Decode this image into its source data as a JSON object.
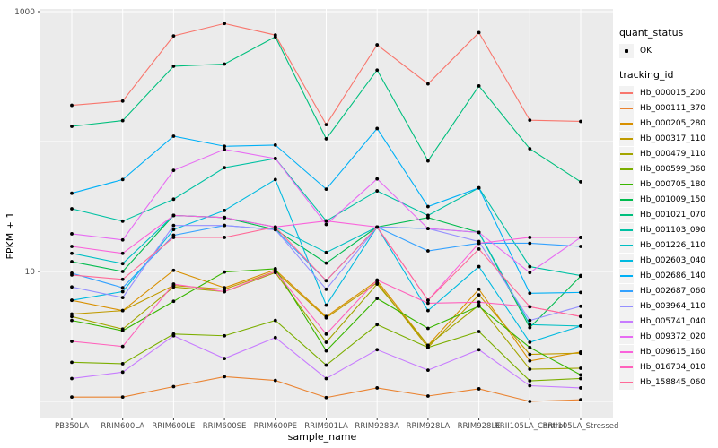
{
  "figure": {
    "panel_bg": "#EBEBEB",
    "grid_color": "#FFFFFF",
    "point_color": "#000000",
    "tick_color": "#333333",
    "tick_label_color": "#4D4D4D",
    "axis_title_color": "#000000",
    "legend_key_bg": "#F2F2F2"
  },
  "legend": {
    "quant_status_title": "quant_status",
    "ok_label": "OK",
    "ok_point_icon": "point-icon",
    "tracking_title": "tracking_id"
  },
  "chart_data": {
    "type": "line",
    "title": "",
    "xlabel": "sample_name",
    "ylabel": "FPKM + 1",
    "y_scale": "log10",
    "ylim": [
      0.75,
      1050
    ],
    "grid": true,
    "legend_position": "right",
    "y_ticks": [
      {
        "label": "1000",
        "value": 1000
      },
      {
        "label": "10",
        "value": 10
      }
    ],
    "y_gridlines": [
      1,
      10,
      100,
      1000
    ],
    "categories": [
      "PB350LA",
      "RRIM600LA",
      "RRIM600LE",
      "RRIM600SE",
      "RRIM600PE",
      "RRIM901LA",
      "RRIM928BA",
      "RRIM928LA",
      "RRIM928LE",
      "RRII105LA_Control",
      "RRII105LA_Stressed"
    ],
    "quant_status_values": [
      "OK"
    ],
    "series": [
      {
        "name": "Hb_000015_200",
        "color": "#F8766D",
        "values": [
          190,
          205,
          650,
          810,
          660,
          135,
          555,
          278,
          690,
          146,
          143
        ]
      },
      {
        "name": "Hb_000111_370",
        "color": "#EA8331",
        "values": [
          1.08,
          1.08,
          1.3,
          1.55,
          1.45,
          1.07,
          1.27,
          1.1,
          1.25,
          1.0,
          1.03
        ]
      },
      {
        "name": "Hb_000205_280",
        "color": "#D89000",
        "values": [
          6.0,
          5.0,
          10.2,
          7.5,
          10.3,
          4.5,
          8.5,
          2.7,
          7.3,
          2.05,
          2.4
        ]
      },
      {
        "name": "Hb_000317_110",
        "color": "#C09B00",
        "values": [
          4.7,
          5.0,
          7.8,
          7.3,
          10.0,
          4.4,
          8.2,
          2.6,
          6.6,
          2.3,
          2.35
        ]
      },
      {
        "name": "Hb_000479_110",
        "color": "#A3A500",
        "values": [
          4.5,
          3.6,
          7.6,
          7.0,
          9.8,
          2.85,
          8.0,
          2.7,
          5.5,
          1.77,
          1.8
        ]
      },
      {
        "name": "Hb_000599_360",
        "color": "#7CAE00",
        "values": [
          2.0,
          1.95,
          3.3,
          3.2,
          4.2,
          1.9,
          3.9,
          2.6,
          3.45,
          1.44,
          1.5
        ]
      },
      {
        "name": "Hb_000705_180",
        "color": "#39B600",
        "values": [
          4.2,
          3.5,
          5.9,
          9.9,
          10.5,
          2.45,
          6.2,
          3.65,
          5.4,
          2.6,
          1.6
        ]
      },
      {
        "name": "Hb_001009_150",
        "color": "#00BB4E",
        "values": [
          11.9,
          10.0,
          27,
          26,
          21,
          11.6,
          22,
          26,
          20,
          3.7,
          9.2
        ]
      },
      {
        "name": "Hb_001021_070",
        "color": "#00BF7D",
        "values": [
          131,
          145,
          380,
          395,
          640,
          105,
          355,
          71,
          268,
          88,
          49
        ]
      },
      {
        "name": "Hb_001103_090",
        "color": "#00C1A3",
        "values": [
          30.4,
          24.4,
          36,
          63,
          74,
          24.5,
          41.7,
          27,
          44,
          10.9,
          9.3
        ]
      },
      {
        "name": "Hb_001226_110",
        "color": "#00BFC4",
        "values": [
          13.8,
          11.5,
          27,
          26,
          22,
          14,
          22,
          21.4,
          20,
          3.9,
          3.8
        ]
      },
      {
        "name": "Hb_002603_040",
        "color": "#00BAE0",
        "values": [
          6.0,
          7.0,
          21,
          29.5,
          51,
          5.5,
          22,
          5.0,
          10.9,
          2.85,
          3.8
        ]
      },
      {
        "name": "Hb_002686_140",
        "color": "#00B0F6",
        "values": [
          40,
          51,
          110,
          92,
          94,
          43,
          126,
          31.6,
          44,
          6.8,
          6.9
        ]
      },
      {
        "name": "Hb_002687_060",
        "color": "#35A2FF",
        "values": [
          9.7,
          7.5,
          19,
          22.6,
          21,
          8.5,
          22,
          14.4,
          16.5,
          16.5,
          15.6
        ]
      },
      {
        "name": "Hb_003964_110",
        "color": "#9590FF",
        "values": [
          7.6,
          6.3,
          22.6,
          22.6,
          21,
          7.3,
          22,
          21.4,
          17,
          4.2,
          5.4
        ]
      },
      {
        "name": "Hb_005741_040",
        "color": "#C77CFF",
        "values": [
          1.5,
          1.68,
          3.2,
          2.14,
          3.1,
          1.5,
          2.5,
          1.74,
          2.5,
          1.32,
          1.27
        ]
      },
      {
        "name": "Hb_009372_020",
        "color": "#E76BF3",
        "values": [
          19.5,
          17.5,
          60,
          87,
          74,
          23,
          51.6,
          21.4,
          20,
          9.8,
          18.3
        ]
      },
      {
        "name": "Hb_009615_160",
        "color": "#FA62DB",
        "values": [
          15.6,
          13.8,
          27,
          26,
          22,
          24.5,
          22,
          6.0,
          16.5,
          18.3,
          18.3
        ]
      },
      {
        "name": "Hb_016734_010",
        "color": "#FF62BC",
        "values": [
          2.9,
          2.65,
          8.0,
          7.0,
          10,
          3.3,
          8.6,
          5.7,
          5.8,
          5.35,
          4.5
        ]
      },
      {
        "name": "Hb_158845_060",
        "color": "#FF6A98",
        "values": [
          9.4,
          8.7,
          18.3,
          18.3,
          22,
          8.5,
          22,
          6.0,
          14.9,
          5.35,
          4.5
        ]
      }
    ]
  }
}
